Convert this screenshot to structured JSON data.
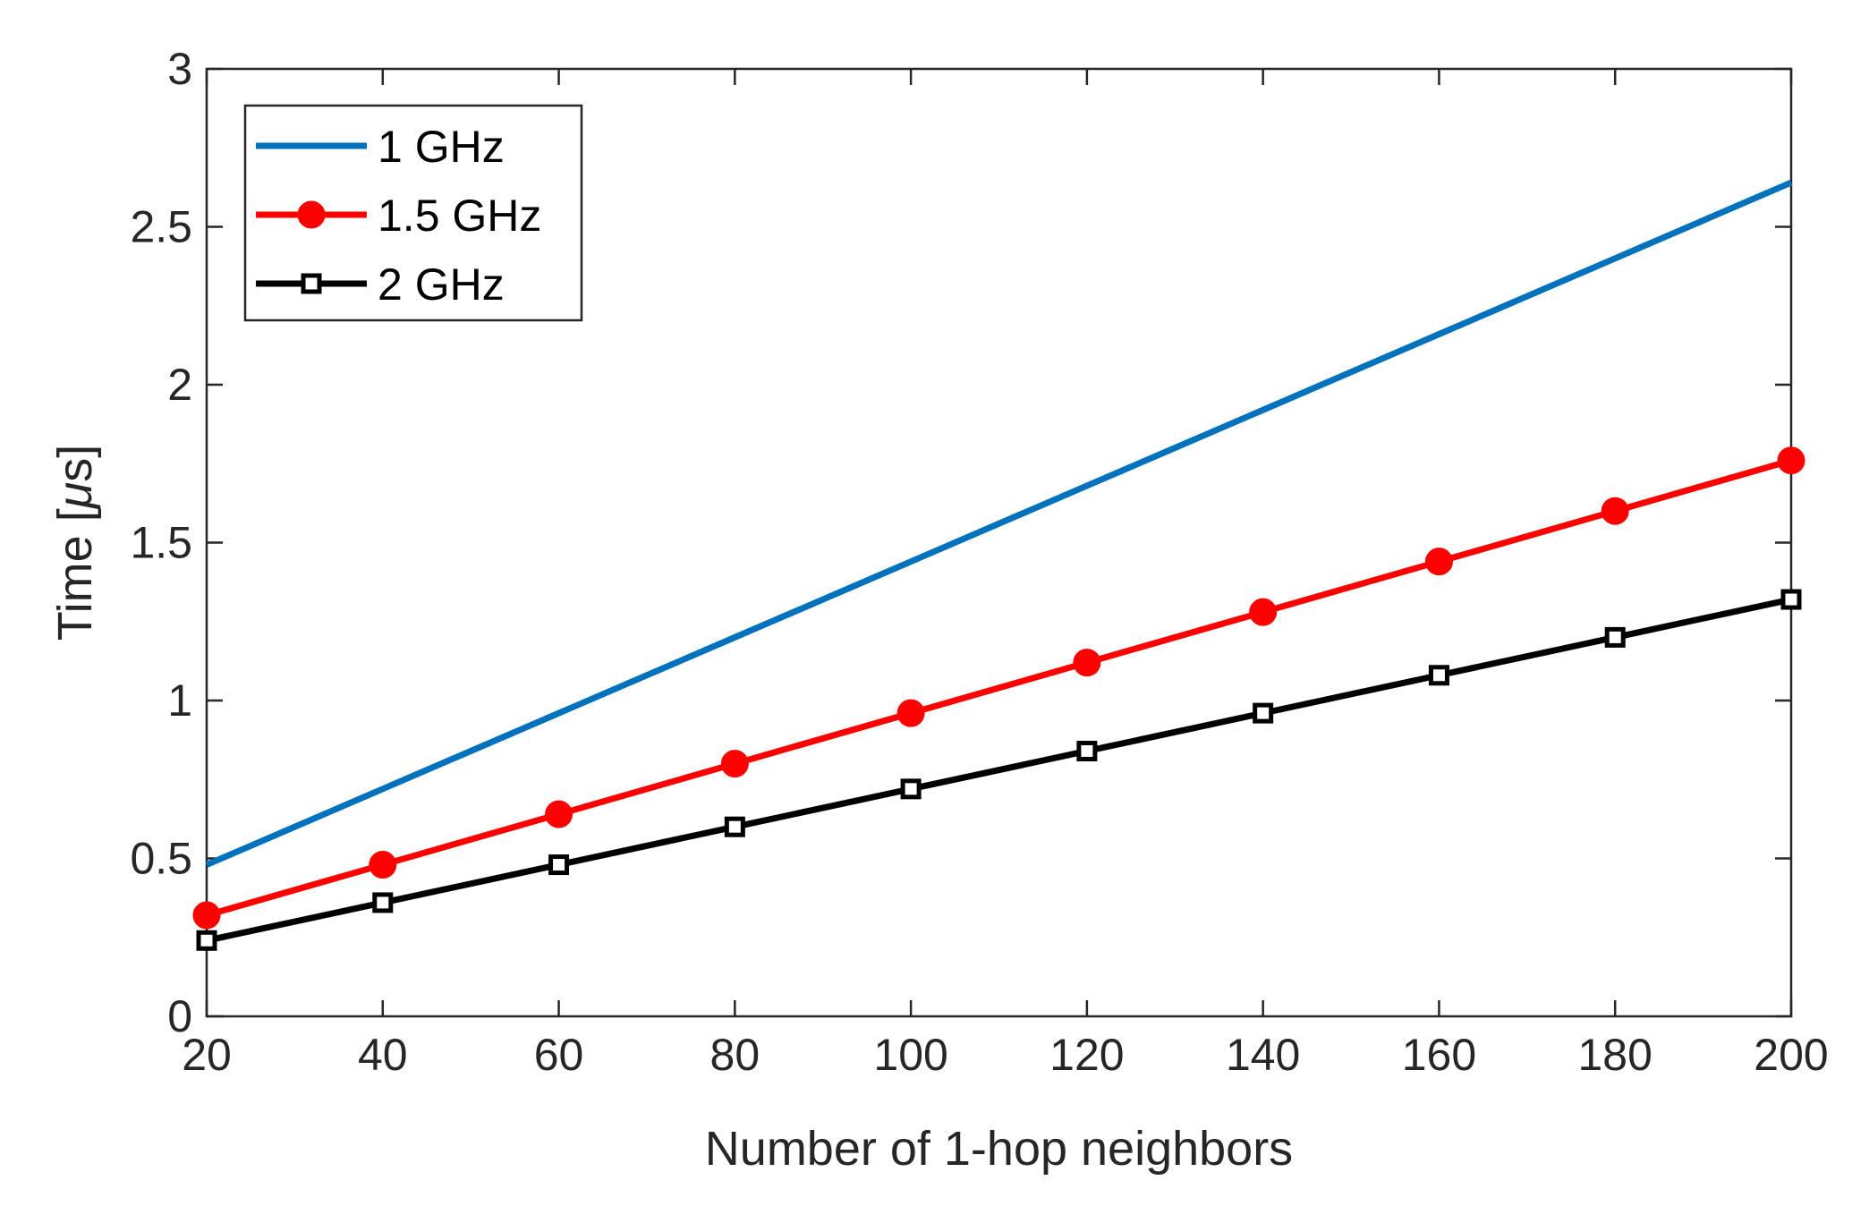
{
  "chart_data": {
    "type": "line",
    "title": "",
    "xlabel": "Number of 1-hop neighbors",
    "ylabel_prefix": "Time [",
    "ylabel_mu": "μ",
    "ylabel_suffix": "s]",
    "xlim": [
      20,
      200
    ],
    "ylim": [
      0,
      3
    ],
    "x_ticks": [
      20,
      40,
      60,
      80,
      100,
      120,
      140,
      160,
      180,
      200
    ],
    "x_tick_labels": [
      "20",
      "40",
      "60",
      "80",
      "100",
      "120",
      "140",
      "160",
      "180",
      "200"
    ],
    "y_ticks": [
      0,
      0.5,
      1,
      1.5,
      2,
      2.5,
      3
    ],
    "y_tick_labels": [
      "0",
      "0.5",
      "1",
      "1.5",
      "2",
      "2.5",
      "3"
    ],
    "grid": false,
    "legend_position": "top-left",
    "x": [
      20,
      40,
      60,
      80,
      100,
      120,
      140,
      160,
      180,
      200
    ],
    "series": [
      {
        "name": "1 GHz",
        "color": "#0072BD",
        "marker": "none",
        "values": [
          0.48,
          0.72,
          0.96,
          1.2,
          1.44,
          1.68,
          1.92,
          2.16,
          2.4,
          2.64
        ]
      },
      {
        "name": "1.5 GHz",
        "color": "#FF0000",
        "marker": "circle",
        "values": [
          0.32,
          0.48,
          0.64,
          0.8,
          0.96,
          1.12,
          1.28,
          1.44,
          1.6,
          1.76
        ]
      },
      {
        "name": "2 GHz",
        "color": "#000000",
        "marker": "square",
        "values": [
          0.24,
          0.36,
          0.48,
          0.6,
          0.72,
          0.84,
          0.96,
          1.08,
          1.2,
          1.32
        ]
      }
    ]
  }
}
